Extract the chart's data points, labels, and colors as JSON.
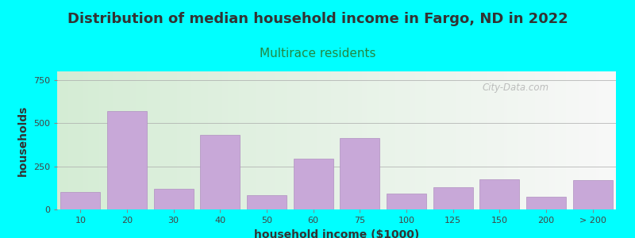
{
  "title": "Distribution of median household income in Fargo, ND in 2022",
  "subtitle": "Multirace residents",
  "xlabel": "household income ($1000)",
  "ylabel": "households",
  "background_outer": "#00FFFF",
  "background_inner_left": "#d4ecd4",
  "background_inner_right": "#f8f8f8",
  "bar_color": "#C8A8D8",
  "bar_edge_color": "#B090C0",
  "categories": [
    "10",
    "20",
    "30",
    "40",
    "50",
    "60",
    "75",
    "100",
    "125",
    "150",
    "200",
    "> 200"
  ],
  "values": [
    100,
    570,
    120,
    430,
    85,
    295,
    415,
    90,
    130,
    175,
    75,
    170
  ],
  "bar_positions": [
    1,
    2,
    3,
    4,
    5,
    6,
    7,
    8,
    9,
    10,
    11,
    12
  ],
  "bar_widths": [
    1,
    1,
    1,
    1,
    1,
    1,
    1,
    1,
    1,
    1,
    1,
    1
  ],
  "yticks": [
    0,
    250,
    500,
    750
  ],
  "ylim": [
    0,
    800
  ],
  "title_fontsize": 13,
  "subtitle_fontsize": 11,
  "subtitle_color": "#228844",
  "axis_label_fontsize": 10,
  "tick_fontsize": 8,
  "watermark": "City-Data.com"
}
